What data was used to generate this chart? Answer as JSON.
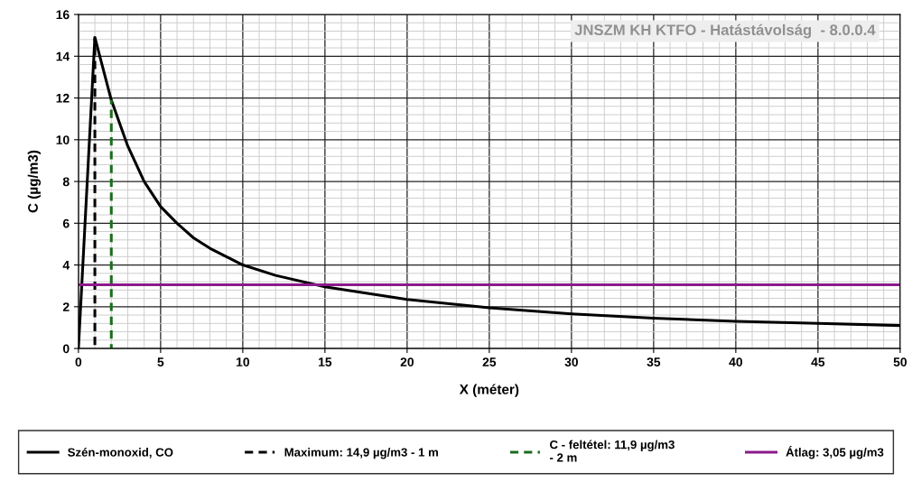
{
  "chart_data": {
    "type": "line",
    "title": "JNSZM KH KTFO - Hatástávolság  - 8.0.0.4",
    "xlabel": "X (méter)",
    "ylabel": "C (µg/m3)",
    "series": [
      {
        "name": "Szén-monoxid, CO",
        "color": "#000000",
        "line_style": "solid",
        "x": [
          0,
          1,
          2,
          3,
          4,
          5,
          6,
          7,
          8,
          9,
          10,
          12,
          15,
          20,
          25,
          30,
          35,
          40,
          45,
          50
        ],
        "values": [
          0,
          14.9,
          11.9,
          9.7,
          8.0,
          6.8,
          6.0,
          5.3,
          4.8,
          4.4,
          4.0,
          3.5,
          2.95,
          2.35,
          1.95,
          1.66,
          1.45,
          1.3,
          1.2,
          1.1
        ]
      },
      {
        "name": "Maximum: 14,9 µg/m3 - 1 m",
        "color": "#000000",
        "line_style": "dashed",
        "x": [
          1,
          1
        ],
        "values": [
          0,
          14.9
        ]
      },
      {
        "name": "C - feltétel: 11,9 µg/m3\n- 2 m",
        "color": "#1a6e1a",
        "line_style": "dashed",
        "x": [
          2,
          2
        ],
        "values": [
          0,
          11.9
        ]
      },
      {
        "name": "Átlag: 3,05 µg/m3",
        "color": "#8b1a8b",
        "line_style": "solid",
        "x": [
          0,
          50
        ],
        "values": [
          3.05,
          3.05
        ]
      }
    ],
    "xlim": [
      0,
      50
    ],
    "xticks": [
      0,
      5,
      10,
      15,
      20,
      25,
      30,
      35,
      40,
      45,
      50
    ],
    "ylim": [
      0,
      16
    ],
    "yticks": [
      0,
      2,
      4,
      6,
      8,
      10,
      12,
      14,
      16
    ],
    "grid": true,
    "legend": "bottom",
    "marker": "none"
  }
}
